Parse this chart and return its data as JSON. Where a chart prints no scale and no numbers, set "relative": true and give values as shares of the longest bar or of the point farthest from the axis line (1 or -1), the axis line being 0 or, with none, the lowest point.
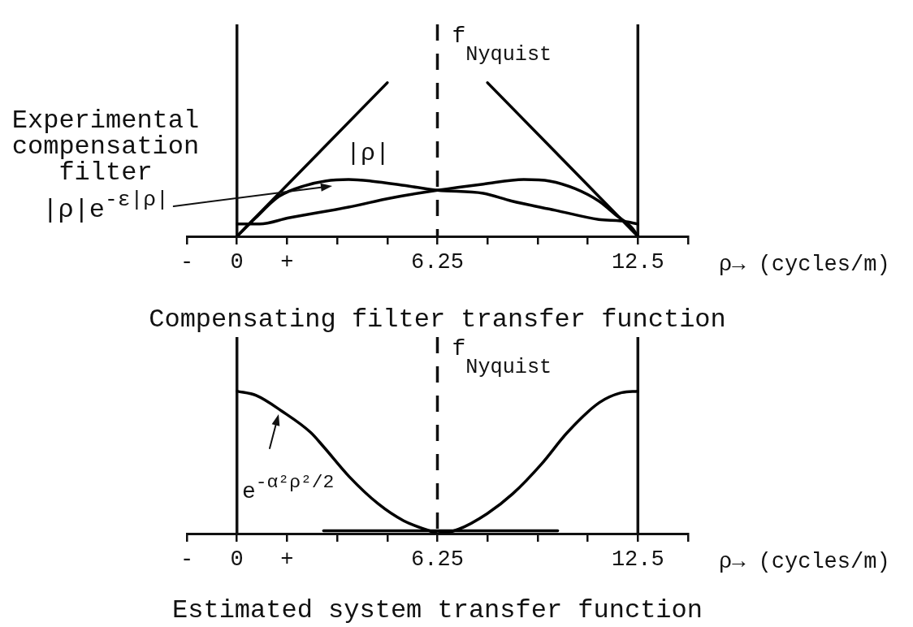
{
  "chart_data": [
    {
      "type": "line",
      "title": "Compensating filter transfer function",
      "xlabel": "ρ→ (cycles/m)",
      "relative": true,
      "xlim": [
        -1.5625,
        14.0625
      ],
      "xticks": [
        {
          "value": -1.5625,
          "label": "-"
        },
        0,
        {
          "value": 1.5625,
          "label": "+"
        },
        {
          "value": 3.125,
          "label": null
        },
        {
          "value": 4.6875,
          "label": null
        },
        6.25,
        {
          "value": 7.8125,
          "label": null
        },
        {
          "value": 9.375,
          "label": null
        },
        {
          "value": 10.9375,
          "label": null
        },
        12.5,
        {
          "value": 14.0625,
          "label": null
        }
      ],
      "series": [
        {
          "color": "#000000",
          "x": [
            0,
            4.6875
          ],
          "values": [
            0,
            1
          ]
        },
        {
          "color": "#000000",
          "x": [
            7.8125,
            12.5
          ],
          "values": [
            1,
            0
          ]
        },
        {
          "color": "#000000",
          "x": [
            0,
            0.58,
            1.31,
            2.12,
            2.75,
            3.48,
            4.18,
            5.26,
            6.25,
            7.68,
            8.56,
            9.92,
            11.28,
            12.0,
            12.5
          ],
          "values": [
            0,
            0.12,
            0.26,
            0.33,
            0.36,
            0.37,
            0.36,
            0.33,
            0.3,
            0.28,
            0.23,
            0.17,
            0.11,
            0.1,
            0.08
          ]
        },
        {
          "color": "#000000",
          "x": [
            0,
            0.71,
            1.61,
            3.48,
            4.81,
            6.25,
            7.68,
            8.94,
            9.75,
            10.55,
            11.28,
            11.81,
            12.34,
            12.5
          ],
          "values": [
            0.08,
            0.08,
            0.12,
            0.19,
            0.25,
            0.3,
            0.34,
            0.37,
            0.36,
            0.31,
            0.23,
            0.14,
            0.05,
            0
          ]
        }
      ],
      "ref_lines": [
        {
          "axis": "x",
          "value": 0
        },
        {
          "axis": "x",
          "value": 12.5
        },
        {
          "axis": "x",
          "value": 6.25,
          "label": "f$_{Nyquist}$",
          "line_style": "dashed"
        }
      ],
      "annotations": [
        "Experimental compensation filter |ρ|e$^{-ε|ρ|}$",
        "|ρ|"
      ]
    },
    {
      "type": "line",
      "title": "Estimated system transfer function",
      "xlabel": "ρ→ (cycles/m)",
      "relative": true,
      "xlim": [
        -1.5625,
        14.0625
      ],
      "xticks": [
        {
          "value": -1.5625,
          "label": "-"
        },
        0,
        {
          "value": 1.5625,
          "label": "+"
        },
        {
          "value": 3.125,
          "label": null
        },
        {
          "value": 4.6875,
          "label": null
        },
        6.25,
        {
          "value": 7.8125,
          "label": null
        },
        {
          "value": 9.375,
          "label": null
        },
        {
          "value": 10.9375,
          "label": null
        },
        12.5,
        {
          "value": 14.0625,
          "label": null
        }
      ],
      "series": [
        {
          "color": "#000000",
          "x": [
            0,
            0.6,
            1.4,
            2.3,
            2.7,
            3.5,
            4.4,
            5.2,
            6.0,
            6.25,
            6.9,
            7.8,
            8.6,
            9.5,
            10.3,
            11.3,
            12.0,
            12.5
          ],
          "values": [
            1,
            0.97,
            0.86,
            0.71,
            0.61,
            0.4,
            0.21,
            0.09,
            0.02,
            0,
            0.03,
            0.14,
            0.28,
            0.49,
            0.71,
            0.92,
            0.99,
            1
          ]
        },
        {
          "color": "#000000",
          "x": [
            2.7,
            10.0
          ],
          "values": [
            0.02,
            0.02
          ]
        }
      ],
      "ref_lines": [
        {
          "axis": "x",
          "value": 0
        },
        {
          "axis": "x",
          "value": 12.5
        },
        {
          "axis": "x",
          "value": 6.25,
          "label": "f$_{Nyquist}$",
          "line_style": "dashed"
        }
      ],
      "annotations": [
        "e$^{-α²ρ²/2}$"
      ]
    }
  ]
}
